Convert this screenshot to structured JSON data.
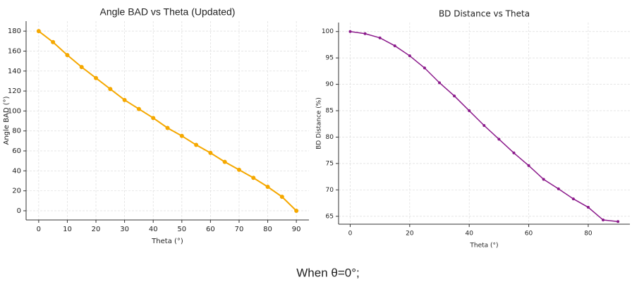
{
  "chart_data": [
    {
      "type": "line",
      "title": "Angle BAD vs Theta (Updated)",
      "x_label": "Theta (°)",
      "y_label": "Angle BAD (°)",
      "x": [
        0,
        5,
        10,
        15,
        20,
        25,
        30,
        35,
        40,
        45,
        50,
        55,
        60,
        65,
        70,
        75,
        80,
        85,
        90
      ],
      "series": [
        {
          "name": "Angle BAD",
          "color": "#f5a800",
          "values": [
            180,
            169,
            156,
            144,
            133,
            122,
            111,
            102,
            93,
            83,
            75,
            66,
            58,
            49,
            41,
            33,
            24,
            14,
            0
          ]
        }
      ],
      "xlim": [
        -4.4,
        94.4
      ],
      "ylim": [
        -9.2,
        190
      ],
      "xticks": [
        0,
        10,
        20,
        30,
        40,
        50,
        60,
        70,
        80,
        90
      ],
      "yticks": [
        0,
        20,
        40,
        60,
        80,
        100,
        120,
        140,
        160,
        180
      ],
      "grid": true
    },
    {
      "type": "line",
      "title": "BD Distance vs Theta",
      "x_label": "Theta (°)",
      "y_label": "BD Distance (%)",
      "x": [
        0,
        5,
        10,
        15,
        20,
        25,
        30,
        35,
        40,
        45,
        50,
        55,
        60,
        65,
        70,
        75,
        80,
        85,
        90
      ],
      "series": [
        {
          "name": "BD Distance",
          "color": "#8b1a8b",
          "values": [
            100,
            99.6,
            98.8,
            97.3,
            95.4,
            93.1,
            90.3,
            87.8,
            85.0,
            82.2,
            79.6,
            77.0,
            74.6,
            72.0,
            70.2,
            68.3,
            66.7,
            64.3,
            64.0
          ]
        }
      ],
      "xlim": [
        -3.9,
        94
      ],
      "ylim": [
        63.5,
        101.7
      ],
      "xticks": [
        0,
        20,
        40,
        60,
        80
      ],
      "yticks": [
        65,
        70,
        75,
        80,
        85,
        90,
        95,
        100
      ],
      "grid": true
    }
  ],
  "caption": "When θ=0°;"
}
